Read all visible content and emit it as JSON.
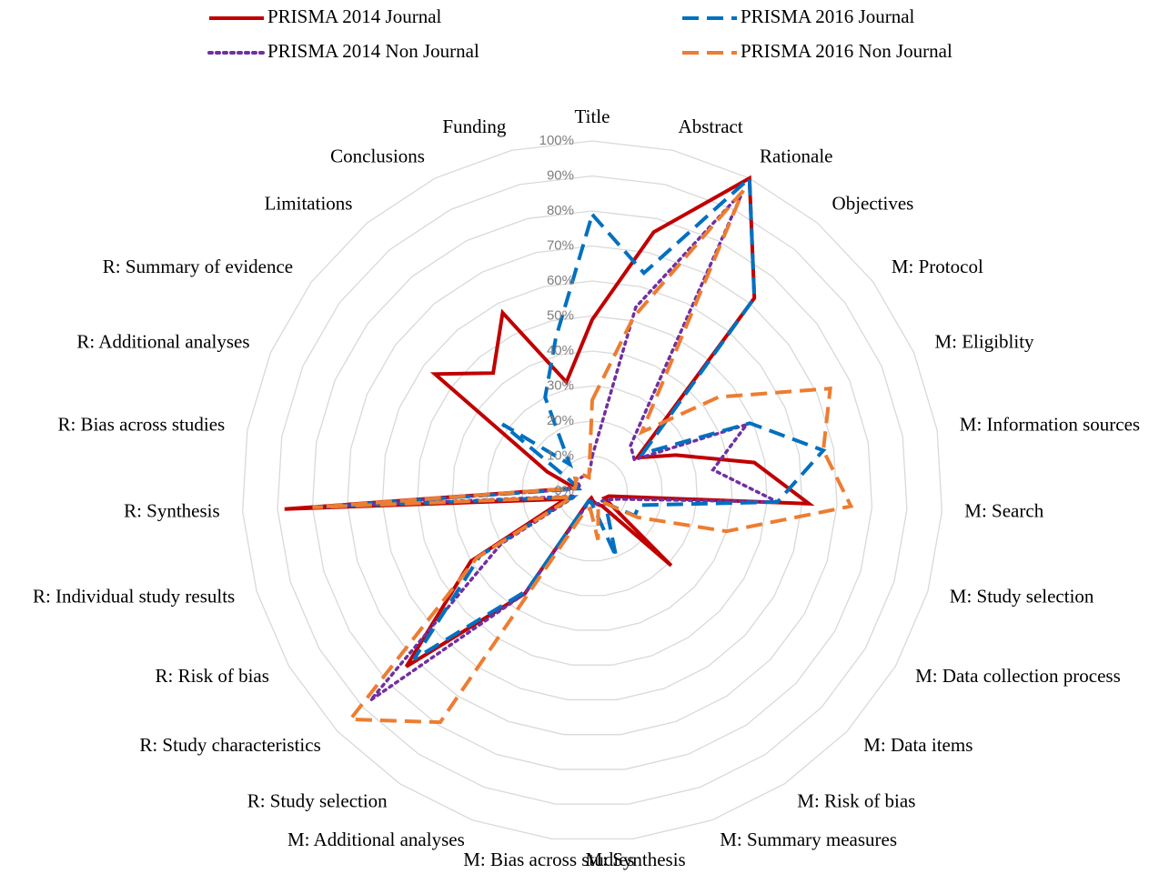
{
  "chart_data": {
    "type": "radar",
    "categories": [
      "Title",
      "Abstract",
      "Rationale",
      "Objectives",
      "M: Protocol",
      "M: Eligiblity",
      "M: Information sources",
      "M: Search",
      "M: Study selection",
      "M: Data collection process",
      "M: Data items",
      "M: Risk of bias",
      "M: Summary measures",
      "M: Synthesis",
      "M: Bias across studies",
      "M: Additional analyses",
      "R: Study selection",
      "R: Study characteristics",
      "R: Risk of bias",
      "R: Individual study results",
      "R: Synthesis",
      "R: Bias across studies",
      "R: Additional analyses",
      "R: Summary of evidence",
      "Limitations",
      "Conclusions",
      "Funding"
    ],
    "series": [
      {
        "name": "PRISMA 2014 Journal",
        "color": "#c00000",
        "line_style": "solid",
        "values": [
          49,
          76,
          100,
          72,
          16,
          26,
          47,
          62,
          5,
          4,
          31,
          5,
          4,
          3,
          2,
          3,
          35,
          73,
          40,
          8,
          88,
          5,
          14,
          56,
          44,
          57,
          32
        ]
      },
      {
        "name": "PRISMA 2014 Non Journal",
        "color": "#7030a0",
        "line_style": "dotted",
        "values": [
          10,
          54,
          96,
          17,
          15,
          48,
          35,
          53,
          8,
          5,
          4,
          4,
          4,
          3,
          3,
          4,
          35,
          87,
          30,
          5,
          75,
          4,
          4,
          6,
          5,
          5,
          4
        ]
      },
      {
        "name": "PRISMA 2016 Journal",
        "color": "#0070c0",
        "line_style": "dashed",
        "values": [
          79,
          64,
          100,
          72,
          18,
          49,
          67,
          53,
          14,
          14,
          5,
          8,
          20,
          5,
          3,
          3,
          34,
          70,
          37,
          6,
          80,
          4,
          6,
          32,
          10,
          30,
          45
        ]
      },
      {
        "name": "PRISMA 2016 Non Journal",
        "color": "#ed7d31",
        "line_style": "dashed",
        "values": [
          26,
          51,
          96,
          22,
          45,
          74,
          67,
          74,
          40,
          15,
          5,
          5,
          5,
          14,
          5,
          6,
          79,
          95,
          38,
          6,
          80,
          5,
          5,
          6,
          4,
          5,
          4
        ]
      }
    ],
    "ylim": [
      0,
      100
    ],
    "yticks": [
      {
        "value": 0,
        "label": "0%"
      },
      {
        "value": 10,
        "label": "10%"
      },
      {
        "value": 20,
        "label": "20%"
      },
      {
        "value": 30,
        "label": "30%"
      },
      {
        "value": 40,
        "label": "40%"
      },
      {
        "value": 50,
        "label": "50%"
      },
      {
        "value": 60,
        "label": "60%"
      },
      {
        "value": 70,
        "label": "70%"
      },
      {
        "value": 80,
        "label": "80%"
      },
      {
        "value": 90,
        "label": "90%"
      },
      {
        "value": 100,
        "label": "100%"
      }
    ],
    "grid": true,
    "legend": "top"
  }
}
